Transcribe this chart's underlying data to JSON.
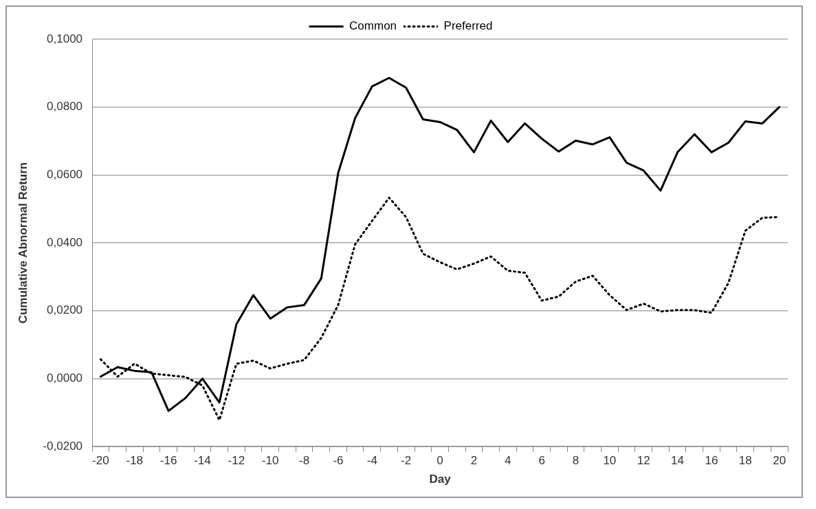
{
  "chart_data": {
    "type": "line",
    "xlabel": "Day",
    "ylabel": "Cumulative Abnormal Return",
    "categories": [
      "-20",
      null,
      "-18",
      null,
      "-16",
      null,
      "-14",
      null,
      "-12",
      null,
      "-10",
      null,
      "-8",
      null,
      "-6",
      null,
      "-4",
      null,
      "-2",
      null,
      "0",
      null,
      "2",
      null,
      "4",
      null,
      "6",
      null,
      "8",
      null,
      "10",
      null,
      "12",
      null,
      "14",
      null,
      "16",
      null,
      "18",
      null,
      "20"
    ],
    "series": [
      {
        "name": "Common",
        "color": "#000000",
        "line_style": "solid",
        "values": [
          0.0006,
          0.0034,
          0.0023,
          0.0019,
          -0.0095,
          -0.0057,
          0.0,
          -0.007,
          0.016,
          0.0246,
          0.0177,
          0.021,
          0.0217,
          0.0295,
          0.0606,
          0.0768,
          0.0861,
          0.0886,
          0.0857,
          0.0764,
          0.0756,
          0.0733,
          0.0667,
          0.076,
          0.0697,
          0.0752,
          0.0707,
          0.0669,
          0.0701,
          0.069,
          0.0711,
          0.0636,
          0.0613,
          0.0554,
          0.0667,
          0.072,
          0.0667,
          0.0695,
          0.0758,
          0.0752,
          0.08
        ]
      },
      {
        "name": "Preferred",
        "color": "#000000",
        "line_style": "dotted",
        "values": [
          0.0057,
          0.0006,
          0.0044,
          0.0015,
          0.001,
          0.0005,
          -0.002,
          -0.0122,
          0.0044,
          0.0053,
          0.003,
          0.0044,
          0.0055,
          0.012,
          0.0217,
          0.0396,
          0.0465,
          0.0533,
          0.0476,
          0.0368,
          0.0343,
          0.0322,
          0.0339,
          0.036,
          0.0318,
          0.0312,
          0.023,
          0.0242,
          0.0286,
          0.0303,
          0.0246,
          0.0202,
          0.0221,
          0.0198,
          0.0202,
          0.0202,
          0.0194,
          0.0282,
          0.0436,
          0.0474,
          0.0476
        ]
      }
    ],
    "ylim": [
      -0.02,
      0.1
    ],
    "yticks": [
      {
        "value": -0.02,
        "label": "-0,0200"
      },
      {
        "value": 0,
        "label": "0,0000"
      },
      {
        "value": 0.02,
        "label": "0,0200"
      },
      {
        "value": 0.04,
        "label": "0,0400"
      },
      {
        "value": 0.06,
        "label": "0,0600"
      },
      {
        "value": 0.08,
        "label": "0,0800"
      },
      {
        "value": 0.1,
        "label": "0,1000"
      }
    ],
    "grid": "y",
    "legend": "top",
    "marker": "none"
  }
}
